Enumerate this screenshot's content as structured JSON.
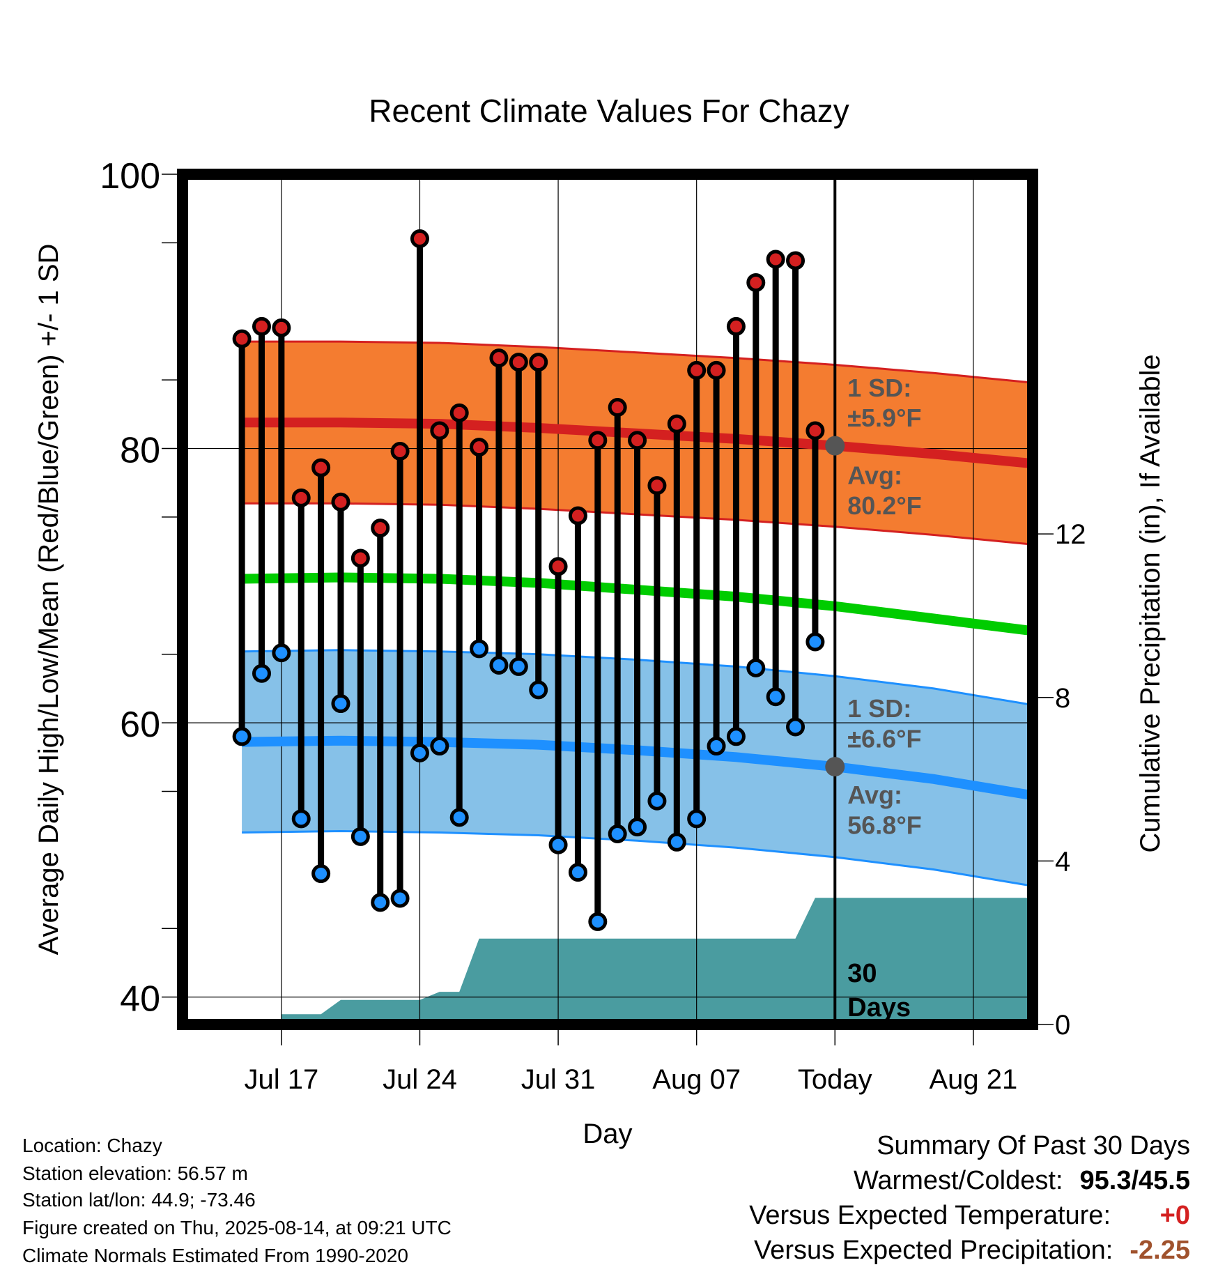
{
  "chart_data": {
    "type": "line",
    "title": "Recent Climate Values For Chazy",
    "xlabel": "Day",
    "ylabel": "Average Daily High/Low/Mean (Red/Blue/Green) +/- 1 SD",
    "y2label": "Cumulative Precipitation (in), If Available",
    "ylim": [
      38,
      100
    ],
    "y_ticks": [
      40,
      60,
      80,
      100
    ],
    "y2lim": [
      0,
      20.8
    ],
    "y2_ticks": [
      0,
      4,
      8,
      12
    ],
    "x_dates": [
      "2025-07-12",
      "2025-08-24"
    ],
    "x_ticks": [
      {
        "date": "2025-07-17",
        "label": "Jul 17"
      },
      {
        "date": "2025-07-24",
        "label": "Jul 24"
      },
      {
        "date": "2025-07-31",
        "label": "Jul 31"
      },
      {
        "date": "2025-08-07",
        "label": "Aug 07"
      },
      {
        "date": "2025-08-14",
        "label": "Today"
      },
      {
        "date": "2025-08-21",
        "label": "Aug 21"
      }
    ],
    "today": "2025-08-14",
    "grid": true,
    "daily": {
      "dates": [
        "2025-07-15",
        "2025-07-16",
        "2025-07-17",
        "2025-07-18",
        "2025-07-19",
        "2025-07-20",
        "2025-07-21",
        "2025-07-22",
        "2025-07-23",
        "2025-07-24",
        "2025-07-25",
        "2025-07-26",
        "2025-07-27",
        "2025-07-28",
        "2025-07-29",
        "2025-07-30",
        "2025-07-31",
        "2025-08-01",
        "2025-08-02",
        "2025-08-03",
        "2025-08-04",
        "2025-08-05",
        "2025-08-06",
        "2025-08-07",
        "2025-08-08",
        "2025-08-09",
        "2025-08-10",
        "2025-08-11",
        "2025-08-12",
        "2025-08-13"
      ],
      "high": [
        88.0,
        88.9,
        88.8,
        76.4,
        78.6,
        76.1,
        72.0,
        74.2,
        79.8,
        95.3,
        81.3,
        82.6,
        80.1,
        86.6,
        86.3,
        86.3,
        71.4,
        75.1,
        80.6,
        83.0,
        80.6,
        77.3,
        81.8,
        85.7,
        85.7,
        88.9,
        92.1,
        93.8,
        93.7,
        81.3
      ],
      "low": [
        59.0,
        63.6,
        65.1,
        53.0,
        49.0,
        61.4,
        51.7,
        46.9,
        47.2,
        57.8,
        58.3,
        53.1,
        65.4,
        64.2,
        64.1,
        62.4,
        51.1,
        49.1,
        45.5,
        51.9,
        52.4,
        54.3,
        51.3,
        53.0,
        58.3,
        59.0,
        64.0,
        61.9,
        59.7,
        65.9
      ]
    },
    "normals": {
      "dates": [
        "2025-07-15",
        "2025-07-20",
        "2025-07-25",
        "2025-07-30",
        "2025-08-04",
        "2025-08-09",
        "2025-08-14",
        "2025-08-19",
        "2025-08-24"
      ],
      "high_avg": [
        81.9,
        81.9,
        81.8,
        81.5,
        81.1,
        80.7,
        80.2,
        79.6,
        78.9
      ],
      "high_sd": 5.9,
      "low_avg": [
        58.6,
        58.7,
        58.6,
        58.4,
        58.0,
        57.5,
        56.8,
        55.9,
        54.7
      ],
      "low_sd": 6.6,
      "mean_avg": [
        70.5,
        70.6,
        70.5,
        70.2,
        69.7,
        69.2,
        68.5,
        67.6,
        66.7
      ]
    },
    "precip": {
      "dates": [
        "2025-07-15",
        "2025-07-17",
        "2025-07-17",
        "2025-07-19",
        "2025-07-20",
        "2025-07-24",
        "2025-07-25",
        "2025-07-26",
        "2025-07-27",
        "2025-08-12",
        "2025-08-13",
        "2025-08-24"
      ],
      "values": [
        0.0,
        0.0,
        0.25,
        0.25,
        0.6,
        0.6,
        0.8,
        0.8,
        2.1,
        2.1,
        3.1,
        3.1
      ]
    },
    "annotations": {
      "high_sd": {
        "line1": "1 SD:",
        "line2": "±5.9°F"
      },
      "high_avg": {
        "line1": "Avg:",
        "line2": "80.2°F",
        "value": 80.2
      },
      "low_sd": {
        "line1": "1 SD:",
        "line2": "±6.6°F"
      },
      "low_avg": {
        "line1": "Avg:",
        "line2": "56.8°F",
        "value": 56.8
      },
      "days": {
        "line1": "30",
        "line2": "Days"
      }
    },
    "colors": {
      "high_band": "#f47c30",
      "high_line": "#d42020",
      "low_band": "#86c1e8",
      "low_line": "#1e90ff",
      "mean_line": "#00cc00",
      "precip": "#4a9ca0",
      "high_marker": "#d42020",
      "low_marker": "#1e90ff",
      "annotation": "#555555"
    }
  },
  "info": {
    "location": "Location: Chazy",
    "elevation": "Station elevation: 56.57 m",
    "latlon": "Station lat/lon: 44.9; -73.46",
    "created": "Figure created on Thu, 2025-08-14, at 09:21 UTC",
    "normals": "Climate Normals Estimated From 1990-2020"
  },
  "summary": {
    "title": "Summary Of Past 30 Days",
    "warm_cold_label": "Warmest/Coldest:",
    "warm_cold_value": "95.3/45.5",
    "temp_label": "Versus Expected Temperature:",
    "temp_value": "+0",
    "temp_color": "#d42020",
    "precip_label": "Versus Expected Precipitation:",
    "precip_value": "-2.25",
    "precip_color": "#a0522d"
  }
}
